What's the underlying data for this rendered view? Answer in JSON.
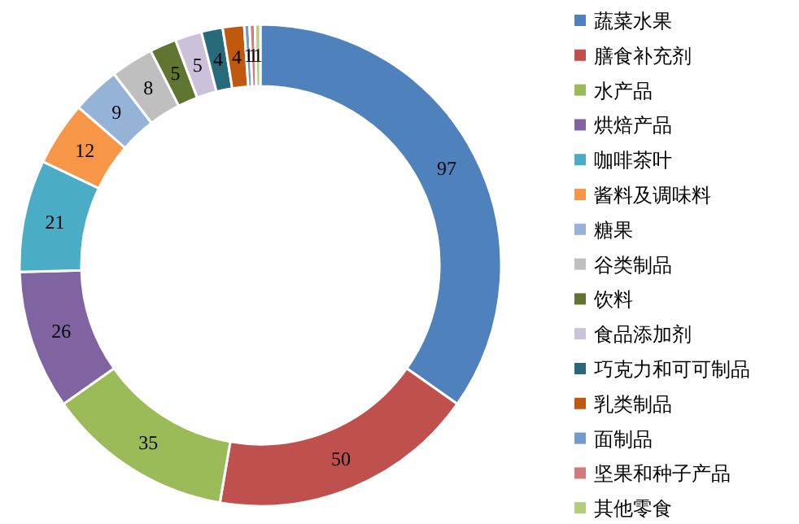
{
  "chart_data": {
    "type": "donut",
    "categories": [
      "蔬菜水果",
      "膳食补充剂",
      "水产品",
      "烘焙产品",
      "咖啡茶叶",
      "酱料及调味料",
      "糖果",
      "谷类制品",
      "饮料",
      "食品添加剂",
      "巧克力和可可制品",
      "乳类制品",
      "面制品",
      "坚果和种子产品",
      "其他零食"
    ],
    "values": [
      97,
      50,
      35,
      26,
      21,
      12,
      9,
      8,
      5,
      5,
      4,
      4,
      1,
      1,
      1
    ],
    "colors": [
      "#4f81bd",
      "#c0504d",
      "#9bbb59",
      "#8064a2",
      "#4bacc6",
      "#f79646",
      "#95b3d7",
      "#bfbfbf",
      "#5f7530",
      "#ccc1da",
      "#276a7c",
      "#c0590e",
      "#729aca",
      "#d37b7a",
      "#b3cd7b"
    ],
    "data_labels": true,
    "legend": "right"
  }
}
